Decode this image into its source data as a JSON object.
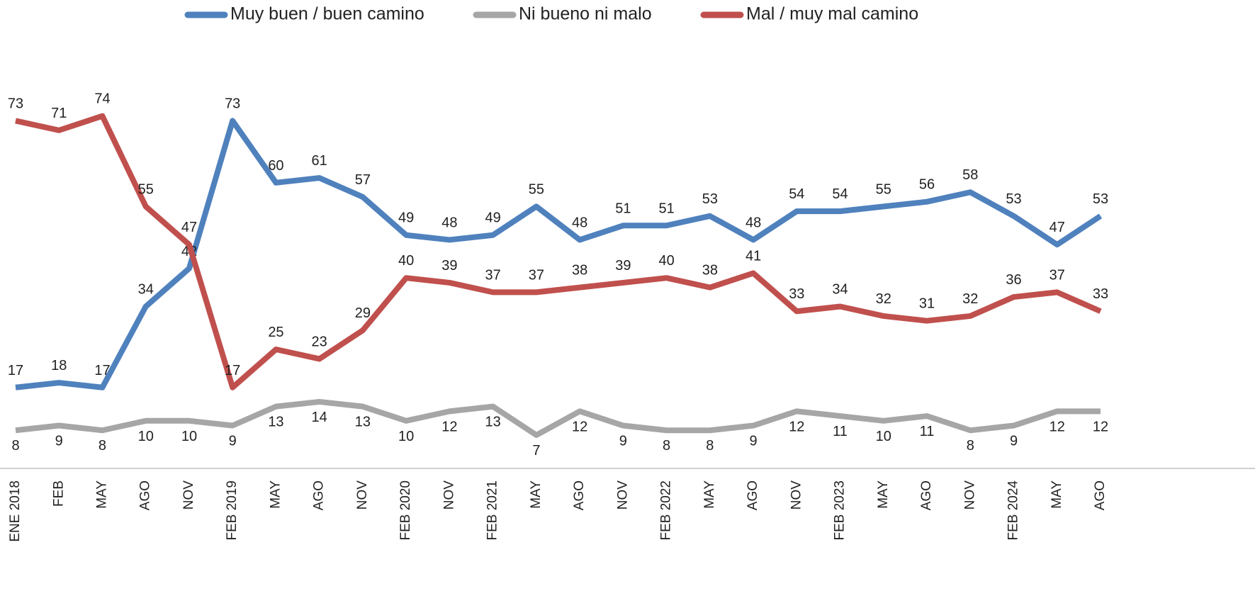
{
  "chart_data": {
    "type": "line",
    "categories": [
      "ENE 2018",
      "FEB",
      "MAY",
      "AGO",
      "NOV",
      "FEB 2019",
      "MAY",
      "AGO",
      "NOV",
      "FEB 2020",
      "NOV",
      "FEB 2021",
      "MAY",
      "AGO",
      "NOV",
      "FEB 2022",
      "MAY",
      "AGO",
      "NOV",
      "FEB 2023",
      "MAY",
      "AGO",
      "NOV",
      "FEB 2024",
      "MAY",
      "AGO"
    ],
    "series": [
      {
        "name": "Muy buen / buen camino",
        "color": "#4f81bd",
        "values": [
          17,
          18,
          17,
          34,
          42,
          73,
          60,
          61,
          57,
          49,
          48,
          49,
          55,
          48,
          51,
          51,
          53,
          48,
          54,
          54,
          55,
          56,
          58,
          53,
          47,
          53
        ]
      },
      {
        "name": "Ni bueno ni malo",
        "color": "#a6a6a6",
        "values": [
          8,
          9,
          8,
          10,
          10,
          9,
          13,
          14,
          13,
          10,
          12,
          13,
          7,
          12,
          9,
          8,
          8,
          9,
          12,
          11,
          10,
          11,
          8,
          9,
          12,
          12
        ]
      },
      {
        "name": "Mal / muy mal camino",
        "color": "#c0504d",
        "values": [
          73,
          71,
          74,
          55,
          47,
          17,
          25,
          23,
          29,
          40,
          39,
          37,
          37,
          38,
          39,
          40,
          38,
          41,
          33,
          34,
          32,
          31,
          32,
          36,
          37,
          33
        ]
      }
    ],
    "legend": "top"
  }
}
